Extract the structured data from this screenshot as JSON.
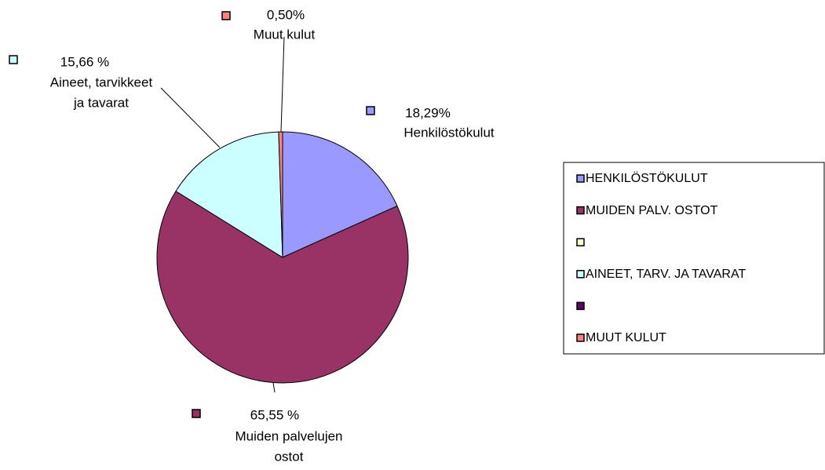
{
  "chart_data": {
    "type": "pie",
    "categories": [
      "HENKILÖSTÖKULUT",
      "MUIDEN PALV. OSTOT",
      null,
      "AINEET, TARV. JA TAVARAT",
      null,
      "MUUT KULUT"
    ],
    "values": [
      18.29,
      65.55,
      0,
      15.66,
      0,
      0.5
    ],
    "value_labels": [
      "18,29%",
      "65,55 %",
      null,
      "15,66 %",
      null,
      "0,50%"
    ],
    "label_texts": [
      [
        "Henkilöstökulut"
      ],
      [
        "Muiden palvelujen",
        "ostot"
      ],
      null,
      [
        "Aineet, tarvikkeet",
        "ja tavarat"
      ],
      null,
      [
        "Muut kulut"
      ]
    ],
    "colors": [
      "#9999ff",
      "#993366",
      "#ffffcc",
      "#ccffff",
      "#660066",
      "#ff8080"
    ],
    "legend": "right"
  }
}
